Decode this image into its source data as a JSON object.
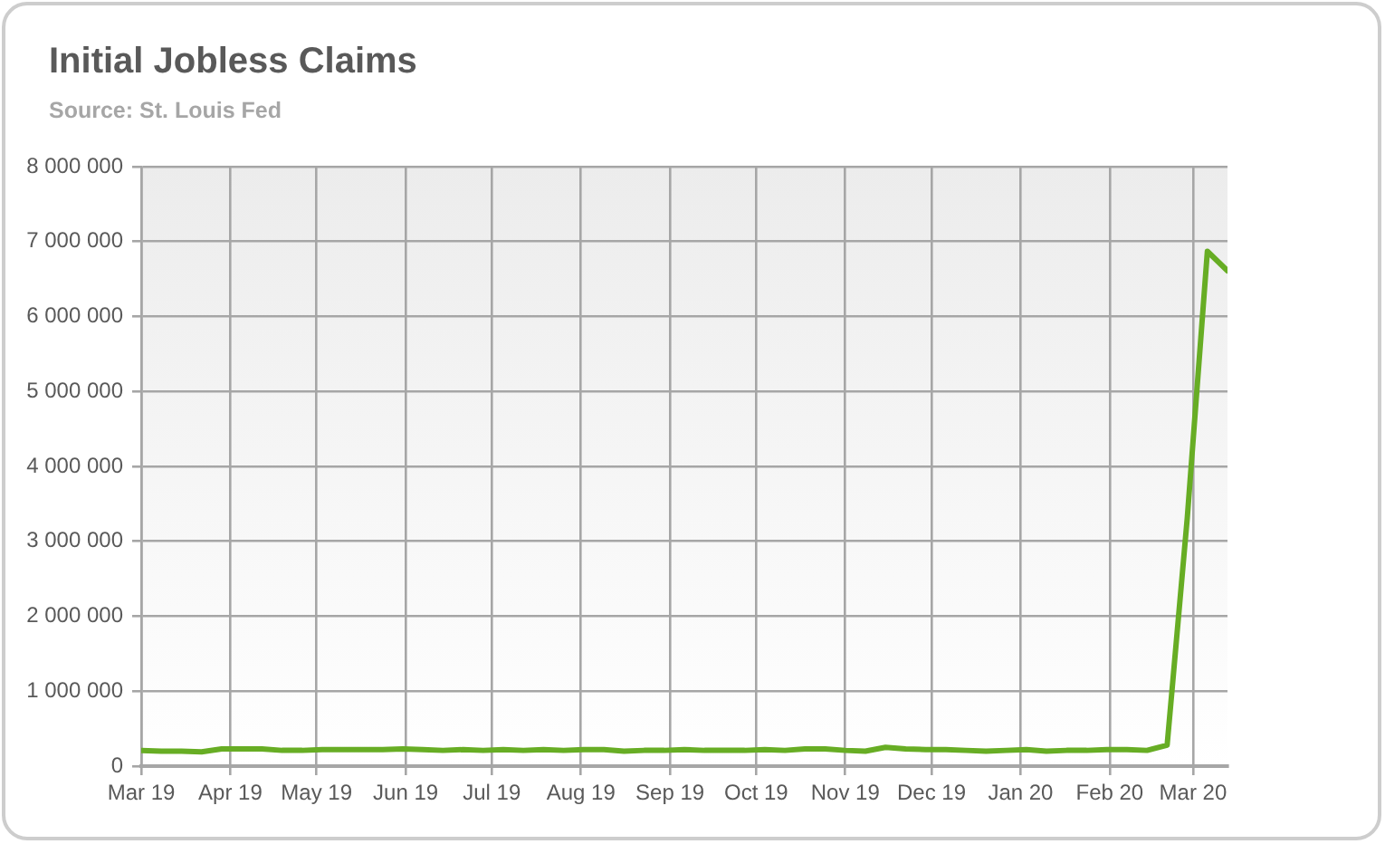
{
  "chart_data": {
    "type": "line",
    "title": "Initial Jobless Claims",
    "subtitle": "Source: St. Louis Fed",
    "x": [
      "2019-03-01",
      "2019-03-08",
      "2019-03-15",
      "2019-03-22",
      "2019-03-29",
      "2019-04-05",
      "2019-04-12",
      "2019-04-19",
      "2019-04-26",
      "2019-05-03",
      "2019-05-10",
      "2019-05-17",
      "2019-05-24",
      "2019-05-31",
      "2019-06-07",
      "2019-06-14",
      "2019-06-21",
      "2019-06-28",
      "2019-07-05",
      "2019-07-12",
      "2019-07-19",
      "2019-07-26",
      "2019-08-02",
      "2019-08-09",
      "2019-08-16",
      "2019-08-23",
      "2019-08-30",
      "2019-09-06",
      "2019-09-13",
      "2019-09-20",
      "2019-09-27",
      "2019-10-04",
      "2019-10-11",
      "2019-10-18",
      "2019-10-25",
      "2019-11-01",
      "2019-11-08",
      "2019-11-15",
      "2019-11-22",
      "2019-11-29",
      "2019-12-06",
      "2019-12-13",
      "2019-12-20",
      "2019-12-27",
      "2020-01-03",
      "2020-01-10",
      "2020-01-17",
      "2020-01-24",
      "2020-01-31",
      "2020-02-07",
      "2020-02-14",
      "2020-02-21",
      "2020-02-28",
      "2020-03-06",
      "2020-03-13"
    ],
    "series": [
      {
        "color": "#67ad24",
        "values": [
          210000,
          200000,
          200000,
          190000,
          230000,
          230000,
          230000,
          210000,
          210000,
          220000,
          220000,
          220000,
          220000,
          230000,
          220000,
          210000,
          220000,
          210000,
          220000,
          210000,
          220000,
          210000,
          220000,
          220000,
          200000,
          210000,
          210000,
          220000,
          210000,
          210000,
          210000,
          220000,
          210000,
          230000,
          230000,
          210000,
          200000,
          250000,
          230000,
          220000,
          220000,
          210000,
          200000,
          210000,
          220000,
          200000,
          210000,
          210000,
          220000,
          220000,
          210000,
          280000,
          3310000,
          6870000,
          6610000
        ]
      }
    ],
    "xlim": [
      "2019-03-01",
      "2020-03-13"
    ],
    "xticks": [
      {
        "value": "2019-03-01",
        "label": "Mar 19"
      },
      {
        "value": "2019-04-01",
        "label": "Apr 19"
      },
      {
        "value": "2019-05-01",
        "label": "May 19"
      },
      {
        "value": "2019-06-01",
        "label": "Jun 19"
      },
      {
        "value": "2019-07-01",
        "label": "Jul 19"
      },
      {
        "value": "2019-08-01",
        "label": "Aug 19"
      },
      {
        "value": "2019-09-01",
        "label": "Sep 19"
      },
      {
        "value": "2019-10-01",
        "label": "Oct 19"
      },
      {
        "value": "2019-11-01",
        "label": "Nov 19"
      },
      {
        "value": "2019-12-01",
        "label": "Dec 19"
      },
      {
        "value": "2020-01-01",
        "label": "Jan 20"
      },
      {
        "value": "2020-02-01",
        "label": "Feb 20"
      },
      {
        "value": "2020-03-01",
        "label": "Mar 20"
      }
    ],
    "ylim": [
      0,
      8000000
    ],
    "yticks": [
      0,
      {
        "value": 1000000,
        "label": "1 000 000"
      },
      {
        "value": 2000000,
        "label": "2 000 000"
      },
      {
        "value": 3000000,
        "label": "3 000 000"
      },
      {
        "value": 4000000,
        "label": "4 000 000"
      },
      {
        "value": 5000000,
        "label": "5 000 000"
      },
      {
        "value": 6000000,
        "label": "6 000 000"
      },
      {
        "value": 7000000,
        "label": "7 000 000"
      },
      {
        "value": 8000000,
        "label": "8 000 000"
      }
    ],
    "grid": true,
    "marker": "none"
  }
}
